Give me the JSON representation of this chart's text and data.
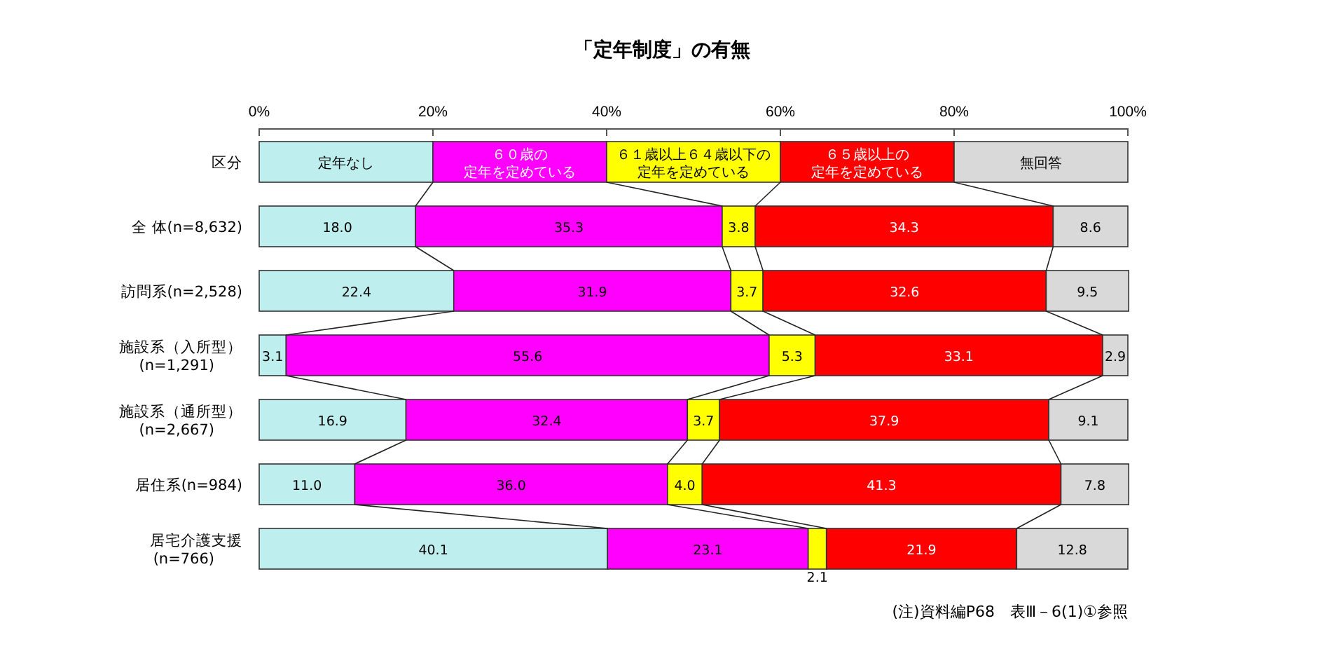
{
  "chart_data": {
    "type": "bar",
    "orientation": "horizontal",
    "stacked": true,
    "title": "「定年制度」の有無",
    "categories": [
      "全 体(n=8,632)",
      "訪問系(n=2,528)",
      "施設系（入所型）(n=1,291)",
      "施設系（通所型）(n=2,667)",
      "居住系(n=984)",
      "居宅介護支援(n=766)"
    ],
    "series": [
      {
        "name": "定年なし",
        "color": "#bfeeee",
        "values": [
          18.0,
          22.4,
          3.1,
          16.9,
          11.0,
          40.1
        ],
        "value_labels": [
          "18.0",
          "22.4",
          "3.1",
          "16.9",
          "11.0",
          "40.1"
        ]
      },
      {
        "name": "６０歳の定年を定めている",
        "color": "#ff00ff",
        "values": [
          35.3,
          31.9,
          55.6,
          32.4,
          36.0,
          23.1
        ],
        "value_labels": [
          "35.3",
          "31.9",
          "55.6",
          "32.4",
          "36.0",
          "23.1"
        ]
      },
      {
        "name": "６１歳以上６４歳以下の定年を定めている",
        "color": "#ffff00",
        "values": [
          3.8,
          3.7,
          5.3,
          3.7,
          4.0,
          2.1
        ],
        "value_labels": [
          "3.8",
          "3.7",
          "5.3",
          "3.7",
          "4.0",
          "2.1"
        ]
      },
      {
        "name": "６５歳以上の定年を定めている",
        "color": "#ff0000",
        "values": [
          34.3,
          32.6,
          33.1,
          37.9,
          41.3,
          21.9
        ],
        "value_labels": [
          "34.3",
          "32.6",
          "33.1",
          "37.9",
          "41.3",
          "21.9"
        ]
      },
      {
        "name": "無回答",
        "color": "#d9d9d9",
        "values": [
          8.6,
          9.5,
          2.9,
          9.1,
          7.8,
          12.8
        ],
        "value_labels": [
          "8.6",
          "9.5",
          "2.9",
          "9.1",
          "7.8",
          "12.8"
        ]
      }
    ],
    "xlim": [
      0,
      100
    ],
    "xticks": [
      {
        "value": 0,
        "label": "0%"
      },
      {
        "value": 20,
        "label": "20%"
      },
      {
        "value": 40,
        "label": "40%"
      },
      {
        "value": 60,
        "label": "60%"
      },
      {
        "value": 80,
        "label": "80%"
      },
      {
        "value": 100,
        "label": "100%"
      }
    ],
    "legend": "top",
    "legend_title": "区分",
    "annotations": [
      "(注)資料編P68　表Ⅲ－6(1)①参照"
    ]
  }
}
